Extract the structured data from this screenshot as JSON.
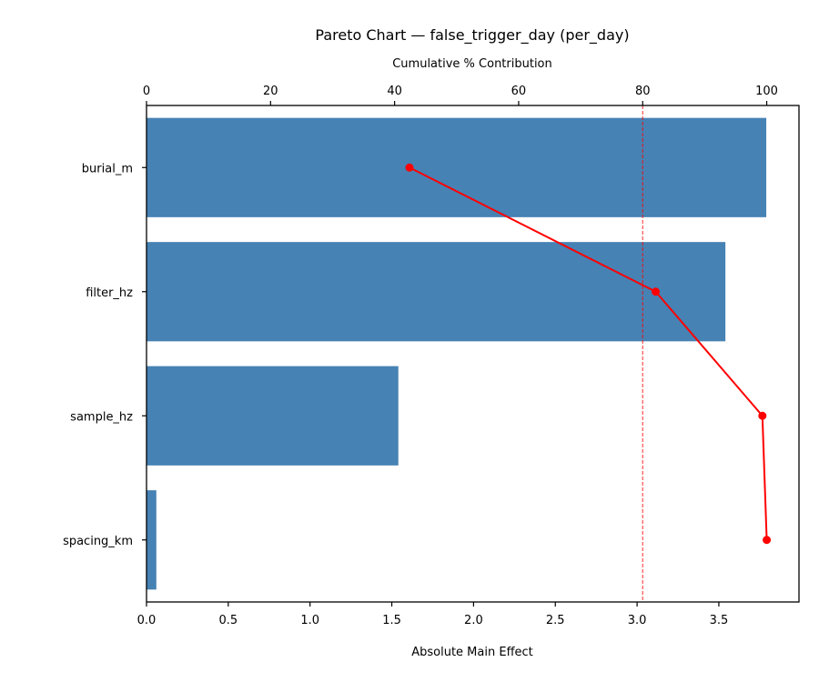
{
  "chart_data": {
    "type": "bar",
    "orientation": "horizontal",
    "title": "Pareto Chart — false_trigger_day (per_day)",
    "xlabel": "Absolute Main Effect",
    "x2label": "Cumulative % Contribution",
    "ylabel": "",
    "categories": [
      "burial_m",
      "filter_hz",
      "sample_hz",
      "spacing_km"
    ],
    "series": [
      {
        "name": "Absolute Main Effect",
        "type": "bar",
        "color": "#4682b4",
        "values": [
          3.79,
          3.54,
          1.54,
          0.06
        ]
      },
      {
        "name": "Cumulative % Contribution",
        "type": "line",
        "axis": "top",
        "color": "#ff0000",
        "values": [
          42.4,
          82.1,
          99.3,
          100.0
        ]
      }
    ],
    "xlim": [
      0,
      3.99
    ],
    "x2lim": [
      0,
      105.2
    ],
    "xticks": [
      "0.0",
      "0.5",
      "1.0",
      "1.5",
      "2.0",
      "2.5",
      "3.0",
      "3.5"
    ],
    "x2ticks": [
      "0",
      "20",
      "40",
      "60",
      "80",
      "100"
    ],
    "reference_line": {
      "axis": "top",
      "value": 80,
      "style": "dashed",
      "color": "#ff0000"
    },
    "grid": false,
    "legend": null
  }
}
